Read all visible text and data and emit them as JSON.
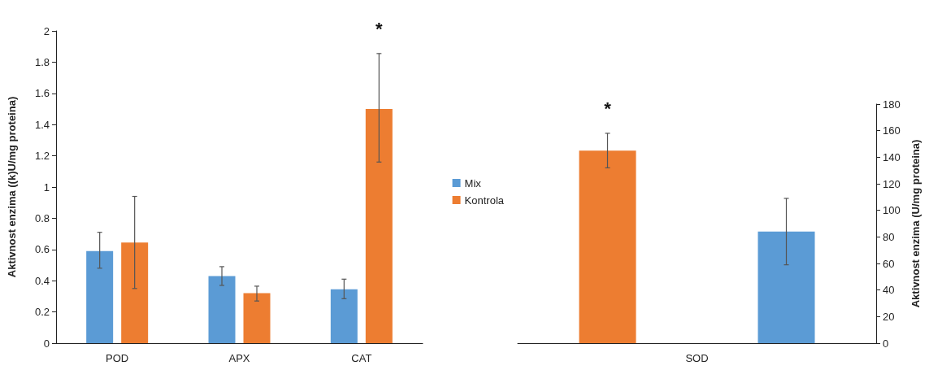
{
  "chart_data": [
    {
      "type": "bar",
      "categories": [
        "POD",
        "APX",
        "CAT"
      ],
      "ylabel": "Aktivnost enzima ((k)U/mg proteina)",
      "ylim": [
        0,
        2
      ],
      "yticks": [
        0,
        0.2,
        0.4,
        0.6,
        0.8,
        1,
        1.2,
        1.4,
        1.6,
        1.8,
        2
      ],
      "legend": "right",
      "series": [
        {
          "name": "Mix",
          "color": "#5b9bd5",
          "values": [
            0.59,
            0.43,
            0.345
          ],
          "errors": [
            [
              0.48,
              0.71
            ],
            [
              0.37,
              0.49
            ],
            [
              0.285,
              0.41
            ]
          ]
        },
        {
          "name": "Kontrola",
          "color": "#ed7d31",
          "values": [
            0.645,
            0.32,
            1.5
          ],
          "errors": [
            [
              0.35,
              0.94
            ],
            [
              0.27,
              0.365
            ],
            [
              1.16,
              1.855
            ]
          ]
        }
      ],
      "annotations": [
        "*"
      ]
    },
    {
      "type": "bar",
      "categories": [
        "SOD"
      ],
      "ylabel": "Aktivnost enzima (U/mg proteina)",
      "ylim": [
        0,
        180
      ],
      "yticks": [
        0,
        20,
        40,
        60,
        80,
        100,
        120,
        140,
        160,
        180
      ],
      "series": [
        {
          "color": "#ed7d31",
          "values": [
            145
          ],
          "errors": [
            [
              132,
              158
            ]
          ]
        },
        {
          "color": "#5b9bd5",
          "values": [
            84
          ],
          "errors": [
            [
              59,
              109
            ]
          ]
        }
      ],
      "annotations": [
        "*"
      ]
    }
  ]
}
